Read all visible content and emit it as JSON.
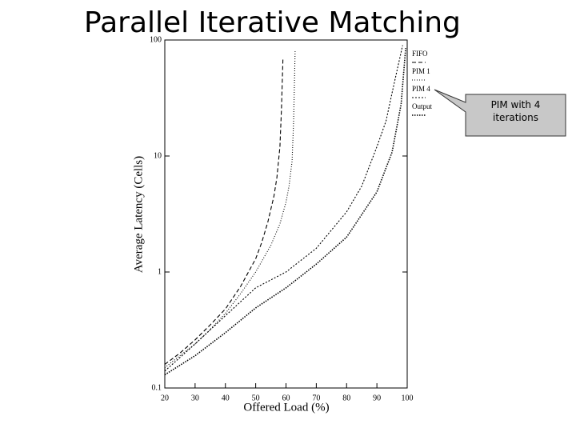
{
  "title": "Parallel Iterative Matching",
  "callout": "PIM with 4 iterations",
  "chart_data": {
    "type": "line",
    "x_label": "Offered Load (%)",
    "y_label": "Average Latency (Cells)",
    "xlim": [
      20,
      100
    ],
    "xticks": [
      20,
      30,
      40,
      50,
      60,
      70,
      80,
      90,
      100
    ],
    "ylim": [
      0.1,
      100
    ],
    "yticks": [
      0.1,
      1,
      10,
      100
    ],
    "y_log": true,
    "series": [
      {
        "name": "FIFO",
        "color": "#000000",
        "line_style": "dashed",
        "x": [
          20,
          25,
          30,
          35,
          40,
          45,
          50,
          52,
          54,
          56,
          57,
          58,
          58.5,
          59
        ],
        "values": [
          0.16,
          0.2,
          0.26,
          0.35,
          0.48,
          0.75,
          1.3,
          1.8,
          2.7,
          4.5,
          6.5,
          12,
          25,
          70
        ]
      },
      {
        "name": "PIM 1",
        "color": "#000000",
        "line_style": "dotted",
        "x": [
          20,
          25,
          30,
          35,
          40,
          45,
          50,
          55,
          58,
          60,
          61,
          62,
          62.5,
          63
        ],
        "values": [
          0.15,
          0.19,
          0.24,
          0.32,
          0.44,
          0.65,
          1.0,
          1.7,
          2.6,
          4,
          5.5,
          9,
          20,
          80
        ]
      },
      {
        "name": "PIM 4",
        "color": "#000000",
        "line_style": "circles",
        "x": [
          20,
          30,
          40,
          50,
          60,
          70,
          80,
          85,
          90,
          93,
          95,
          97,
          98.5
        ],
        "values": [
          0.14,
          0.24,
          0.42,
          0.73,
          1.0,
          1.6,
          3.3,
          5.5,
          12,
          20,
          35,
          60,
          90
        ]
      },
      {
        "name": "Output",
        "color": "#000000",
        "line_style": "dots",
        "x": [
          20,
          30,
          40,
          50,
          60,
          70,
          80,
          90,
          95,
          98,
          99.5
        ],
        "values": [
          0.13,
          0.19,
          0.3,
          0.49,
          0.73,
          1.17,
          2.0,
          4.9,
          10.8,
          28,
          85
        ]
      }
    ]
  }
}
